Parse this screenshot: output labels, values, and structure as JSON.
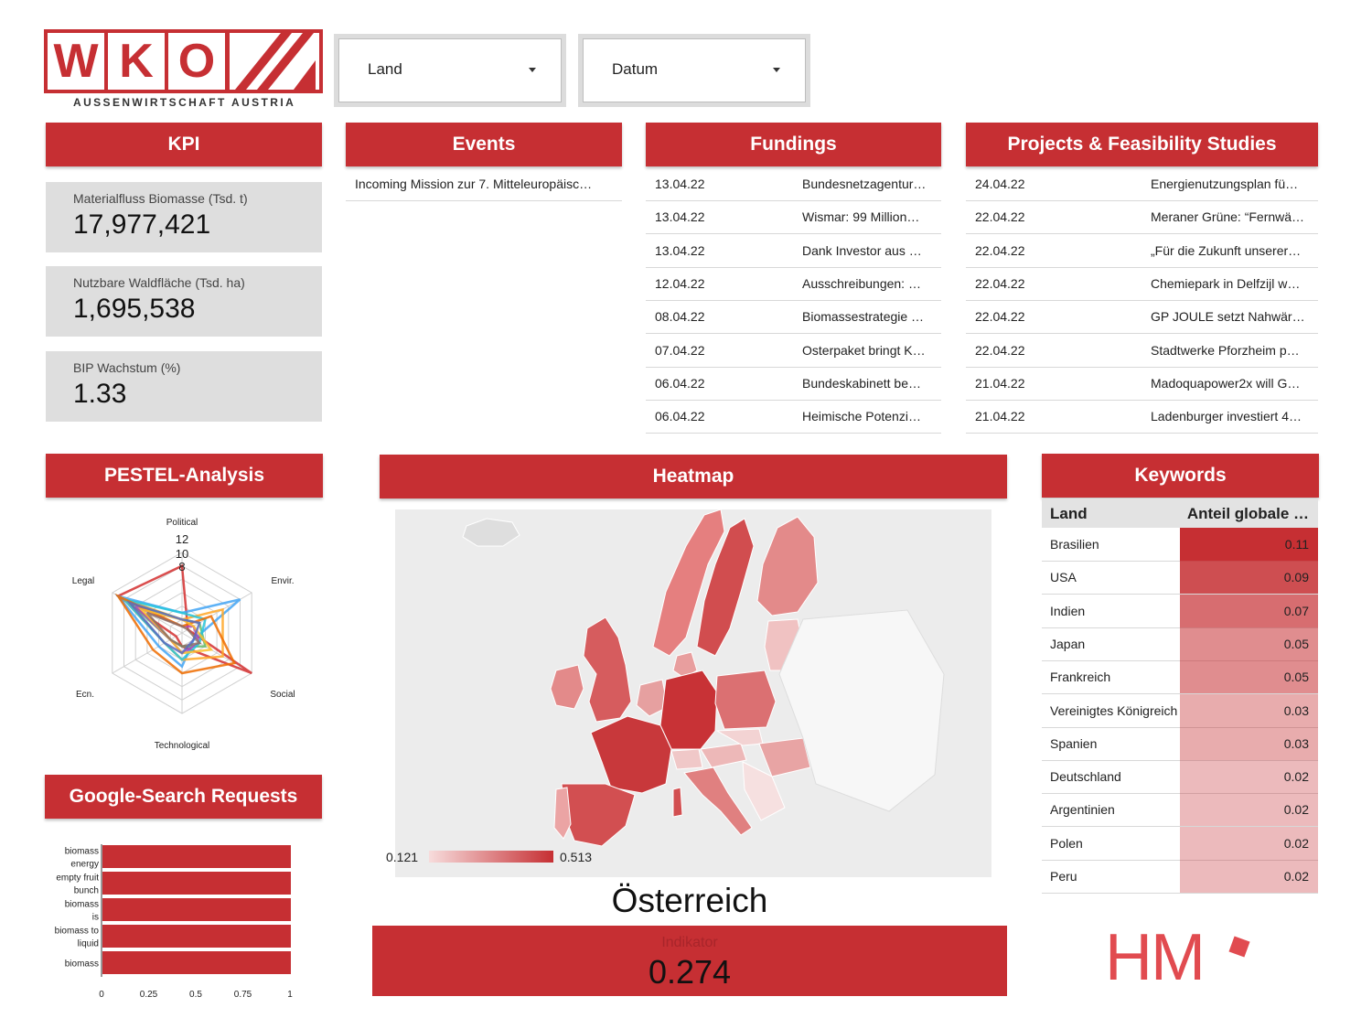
{
  "logo": {
    "letters": [
      "W",
      "K",
      "O"
    ],
    "subtitle": "AUSSENWIRTSCHAFT AUSTRIA"
  },
  "filters": {
    "land": "Land",
    "datum": "Datum"
  },
  "kpi": {
    "title": "KPI",
    "cards": [
      {
        "label": "Materialfluss Biomasse (Tsd. t)",
        "value": "17,977,421"
      },
      {
        "label": "Nutzbare Waldfläche (Tsd. ha)",
        "value": "1,695,538"
      },
      {
        "label": "BIP Wachstum (%)",
        "value": "1.33"
      }
    ]
  },
  "events": {
    "title": "Events",
    "items": [
      "Incoming Mission zur 7. Mitteleuropäisc…"
    ]
  },
  "fundings": {
    "title": "Fundings",
    "rows": [
      {
        "date": "13.04.22",
        "text": "Bundesnetzagentur…"
      },
      {
        "date": "13.04.22",
        "text": "Wismar: 99 Million…"
      },
      {
        "date": "13.04.22",
        "text": "Dank Investor aus …"
      },
      {
        "date": "12.04.22",
        "text": "Ausschreibungen: …"
      },
      {
        "date": "08.04.22",
        "text": "Biomassestrategie …"
      },
      {
        "date": "07.04.22",
        "text": "Osterpaket bringt K…"
      },
      {
        "date": "06.04.22",
        "text": "Bundeskabinett be…"
      },
      {
        "date": "06.04.22",
        "text": "Heimische Potenzi…"
      }
    ]
  },
  "projects": {
    "title": "Projects & Feasibility Studies",
    "rows": [
      {
        "date": "24.04.22",
        "text": "Energienutzungsplan fü…"
      },
      {
        "date": "22.04.22",
        "text": "Meraner Grüne: “Fernwä…"
      },
      {
        "date": "22.04.22",
        "text": "„Für die Zukunft unserer…"
      },
      {
        "date": "22.04.22",
        "text": "Chemiepark in Delfzijl w…"
      },
      {
        "date": "22.04.22",
        "text": "GP JOULE setzt Nahwär…"
      },
      {
        "date": "22.04.22",
        "text": "Stadtwerke Pforzheim p…"
      },
      {
        "date": "21.04.22",
        "text": "Madoquapower2x will G…"
      },
      {
        "date": "21.04.22",
        "text": "Ladenburger investiert 4…"
      }
    ]
  },
  "pestel": {
    "title": "PESTEL-Analysis",
    "axes": [
      "Political",
      "Envir.",
      "Social",
      "Technological",
      "Ecn.",
      "Legal"
    ],
    "ticks": [
      "12",
      "10",
      "8"
    ]
  },
  "search": {
    "title": "Google-Search Requests",
    "labels": [
      "biomass energy",
      "empty fruit bunch",
      "biomass is",
      "biomass to liquid",
      "biomass"
    ],
    "ticks": [
      "0",
      "0.25",
      "0.5",
      "0.75",
      "1"
    ]
  },
  "heatmap": {
    "title": "Heatmap",
    "legend_min": "0.121",
    "legend_max": "0.513",
    "country": "Österreich",
    "indicator_label": "Indikator",
    "indicator_value": "0.274"
  },
  "keywords": {
    "title": "Keywords",
    "col_land": "Land",
    "col_share": "Anteil globale …",
    "rows": [
      {
        "land": "Brasilien",
        "value": "0.11"
      },
      {
        "land": "USA",
        "value": "0.09"
      },
      {
        "land": "Indien",
        "value": "0.07"
      },
      {
        "land": "Japan",
        "value": "0.05"
      },
      {
        "land": "Frankreich",
        "value": "0.05"
      },
      {
        "land": "Vereinigtes Königreich",
        "value": "0.03"
      },
      {
        "land": "Spanien",
        "value": "0.03"
      },
      {
        "land": "Deutschland",
        "value": "0.02"
      },
      {
        "land": "Argentinien",
        "value": "0.02"
      },
      {
        "land": "Polen",
        "value": "0.02"
      },
      {
        "land": "Peru",
        "value": "0.02"
      }
    ]
  },
  "brand": {
    "hm": "HM"
  },
  "chart_data": [
    {
      "type": "bar",
      "title": "Google-Search Requests",
      "categories": [
        "biomass energy",
        "empty fruit bunch",
        "biomass is",
        "biomass to liquid",
        "biomass"
      ],
      "values": [
        1,
        1,
        1,
        1,
        1
      ],
      "xlim": [
        0,
        1
      ],
      "xticks": [
        0,
        0.25,
        0.5,
        0.75,
        1
      ],
      "orientation": "horizontal",
      "color": "#c62f33"
    },
    {
      "type": "radar",
      "title": "PESTEL-Analysis",
      "axes": [
        "Political",
        "Envir.",
        "Social",
        "Technological",
        "Ecn.",
        "Legal"
      ],
      "rmax": 12,
      "series": [
        {
          "color": "#d32f2f",
          "values": [
            10,
            1,
            12,
            2,
            1,
            11
          ]
        },
        {
          "color": "#42a5f5",
          "values": [
            3,
            10,
            2,
            5,
            4,
            11
          ]
        },
        {
          "color": "#ffa726",
          "values": [
            2,
            7,
            7,
            4,
            3,
            10
          ]
        },
        {
          "color": "#66bb6a",
          "values": [
            2,
            3,
            4,
            2,
            2,
            9
          ]
        },
        {
          "color": "#ab47bc",
          "values": [
            1,
            2,
            3,
            3,
            2,
            8
          ]
        },
        {
          "color": "#26c6da",
          "values": [
            3,
            4,
            3,
            4,
            3,
            10
          ]
        },
        {
          "color": "#ef6c00",
          "values": [
            1,
            5,
            9,
            6,
            5,
            11
          ]
        },
        {
          "color": "#fbc02d",
          "values": [
            2,
            2,
            5,
            3,
            2,
            7
          ]
        },
        {
          "color": "#8d6e63",
          "values": [
            1,
            1,
            3,
            2,
            2,
            6
          ]
        },
        {
          "color": "#5c6bc0",
          "values": [
            2,
            3,
            2,
            3,
            3,
            9
          ]
        }
      ]
    }
  ]
}
